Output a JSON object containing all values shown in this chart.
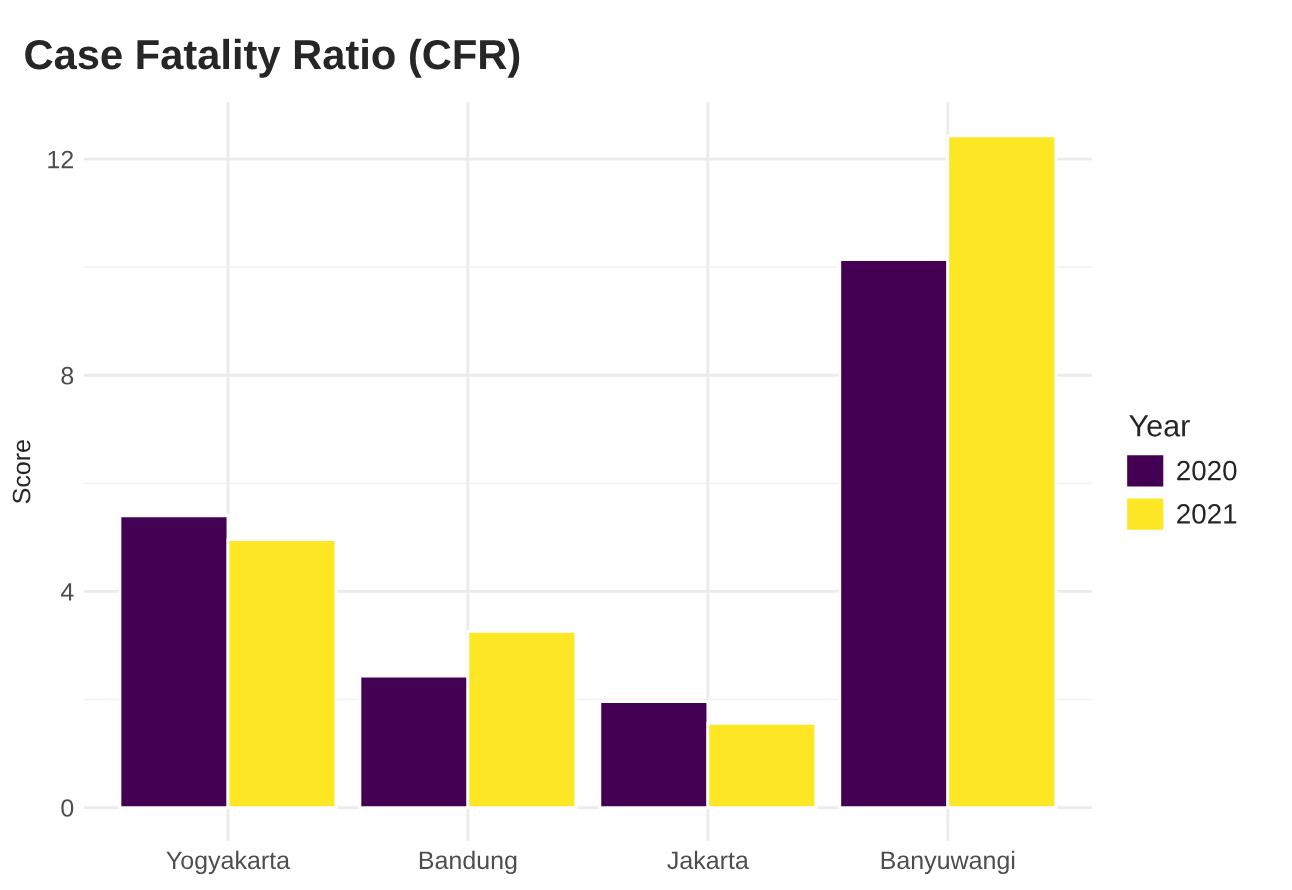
{
  "chart_data": {
    "type": "bar",
    "title": "Case Fatality Ratio (CFR)",
    "ylabel": "Score",
    "legend_title": "Year",
    "categories": [
      "Yogyakarta",
      "Bandung",
      "Jakarta",
      "Banyuwangi"
    ],
    "series": [
      {
        "name": "2020",
        "color": "#440154",
        "values": [
          5.4,
          2.43,
          1.96,
          10.14
        ]
      },
      {
        "name": "2021",
        "color": "#fde725",
        "values": [
          4.96,
          3.26,
          1.56,
          12.43
        ]
      }
    ],
    "ylim": [
      -0.62,
      13.05
    ],
    "yticks": [
      0,
      4,
      8,
      12
    ],
    "grid": true,
    "legend": "right"
  }
}
